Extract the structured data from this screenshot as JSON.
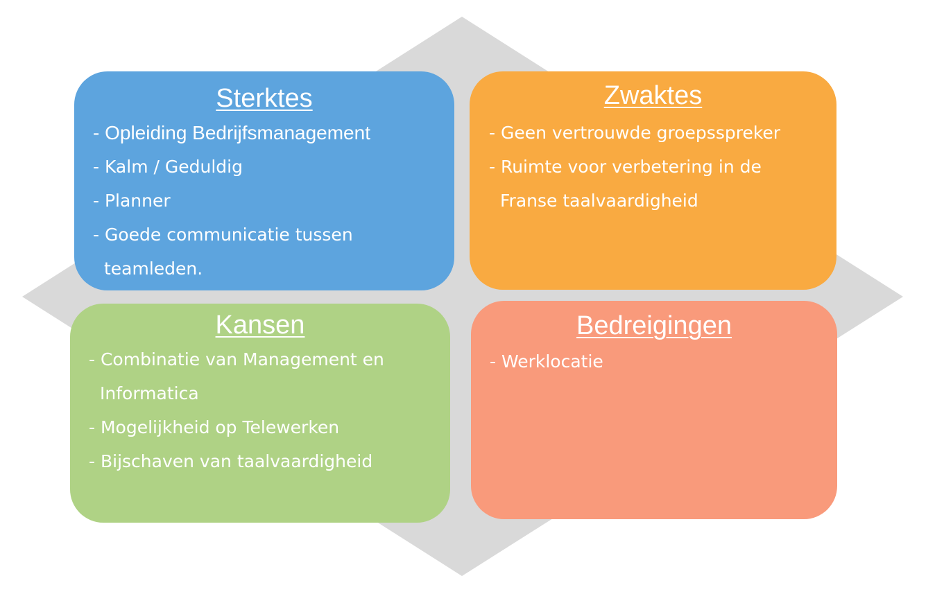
{
  "strengths": {
    "title": "Sterktes",
    "items": [
      "- Opleiding  Bedrijfsmanagement",
      "- Kalm / Geduldig",
      "- Planner",
      "- Goede communicatie tussen",
      "teamleden."
    ]
  },
  "weaknesses": {
    "title": "Zwaktes",
    "items": [
      "- Geen vertrouwde groepsspreker",
      "- Ruimte voor verbetering in de",
      "Franse taalvaardigheid"
    ]
  },
  "opportunities": {
    "title": "Kansen",
    "items": [
      "- Combinatie van Management en",
      "Informatica",
      "- Mogelijkheid  op Telewerken",
      "- Bijschaven van taalvaardigheid"
    ]
  },
  "threats": {
    "title": "Bedreigingen",
    "items": [
      "- Werklocatie"
    ]
  },
  "colors": {
    "background_diamond": "#d9d9d9",
    "strengths": "#5da4de",
    "weaknesses": "#f9aa41",
    "opportunities": "#afd285",
    "threats": "#f99a7b",
    "text": "#ffffff"
  }
}
